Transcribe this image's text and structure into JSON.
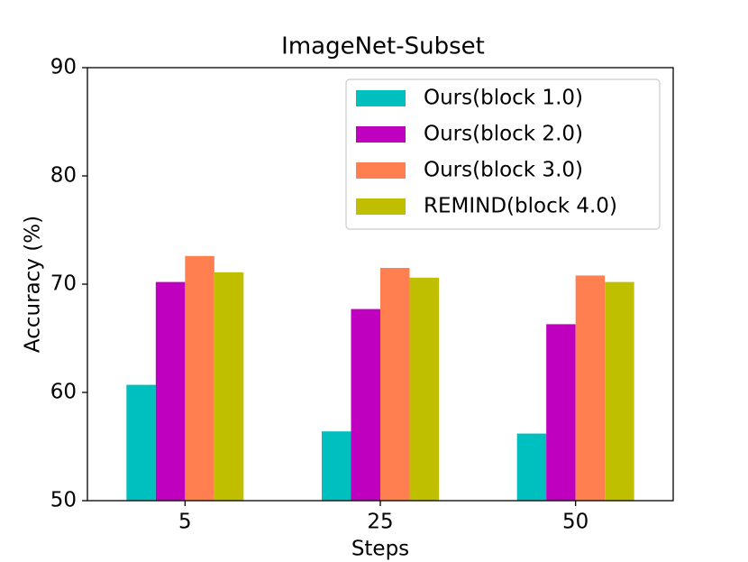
{
  "chart_data": {
    "type": "bar",
    "title": "ImageNet-Subset",
    "x_label": "Steps",
    "y_label": "Accuracy (%)",
    "categories": [
      "5",
      "25",
      "50"
    ],
    "series": [
      {
        "name": "Ours(block 1.0)",
        "color": "#00bfbf",
        "values": [
          60.7,
          56.4,
          56.2
        ]
      },
      {
        "name": "Ours(block 2.0)",
        "color": "#bf00bf",
        "values": [
          70.2,
          67.7,
          66.3
        ]
      },
      {
        "name": "Ours(block 3.0)",
        "color": "#ff7f50",
        "values": [
          72.6,
          71.5,
          70.8
        ]
      },
      {
        "name": "REMIND(block 4.0)",
        "color": "#bfbf00",
        "values": [
          71.1,
          70.6,
          70.2
        ]
      }
    ],
    "ylim": [
      50,
      90
    ],
    "yticks": [
      50,
      60,
      70,
      80,
      90
    ],
    "grid": false,
    "legend": "upper right"
  }
}
